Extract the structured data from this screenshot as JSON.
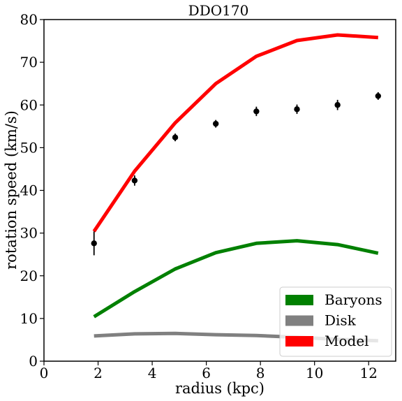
{
  "chart_data": {
    "type": "line",
    "title": "DDO170",
    "xlabel": "radius (kpc)",
    "ylabel": "rotation speed (km/s)",
    "xlim": [
      0,
      13
    ],
    "ylim": [
      0,
      80
    ],
    "x_ticks": [
      "0",
      "2",
      "4",
      "6",
      "8",
      "10",
      "12"
    ],
    "y_ticks": [
      "0",
      "10",
      "20",
      "30",
      "40",
      "50",
      "60",
      "70",
      "80"
    ],
    "x": [
      1.85,
      3.35,
      4.85,
      6.35,
      7.85,
      9.35,
      10.85,
      12.35
    ],
    "series": [
      {
        "name": "Baryons",
        "color": "#008000",
        "values": [
          10.4,
          16.3,
          21.6,
          25.4,
          27.6,
          28.2,
          27.3,
          25.3
        ]
      },
      {
        "name": "Disk",
        "color": "#808080",
        "values": [
          5.9,
          6.4,
          6.5,
          6.2,
          6.0,
          5.6,
          5.1,
          4.8
        ]
      },
      {
        "name": "Model",
        "color": "#ff0000",
        "values": [
          30.4,
          44.5,
          55.8,
          65.0,
          71.4,
          75.1,
          76.4,
          75.8
        ]
      }
    ],
    "observations": {
      "color": "#000000",
      "points": [
        {
          "x": 1.85,
          "y": 27.6,
          "err": 2.8
        },
        {
          "x": 3.35,
          "y": 42.3,
          "err": 1.2
        },
        {
          "x": 4.85,
          "y": 52.4,
          "err": 0.9
        },
        {
          "x": 6.35,
          "y": 55.6,
          "err": 0.9
        },
        {
          "x": 7.85,
          "y": 58.5,
          "err": 1.1
        },
        {
          "x": 9.35,
          "y": 59.0,
          "err": 1.1
        },
        {
          "x": 10.85,
          "y": 60.0,
          "err": 1.2
        },
        {
          "x": 12.35,
          "y": 62.1,
          "err": 0.9
        }
      ]
    },
    "legend": {
      "placement": "lower-right",
      "entries": [
        {
          "label": "Baryons",
          "color": "#008000"
        },
        {
          "label": "Disk",
          "color": "#808080"
        },
        {
          "label": "Model",
          "color": "#ff0000"
        }
      ]
    },
    "grid": false
  }
}
